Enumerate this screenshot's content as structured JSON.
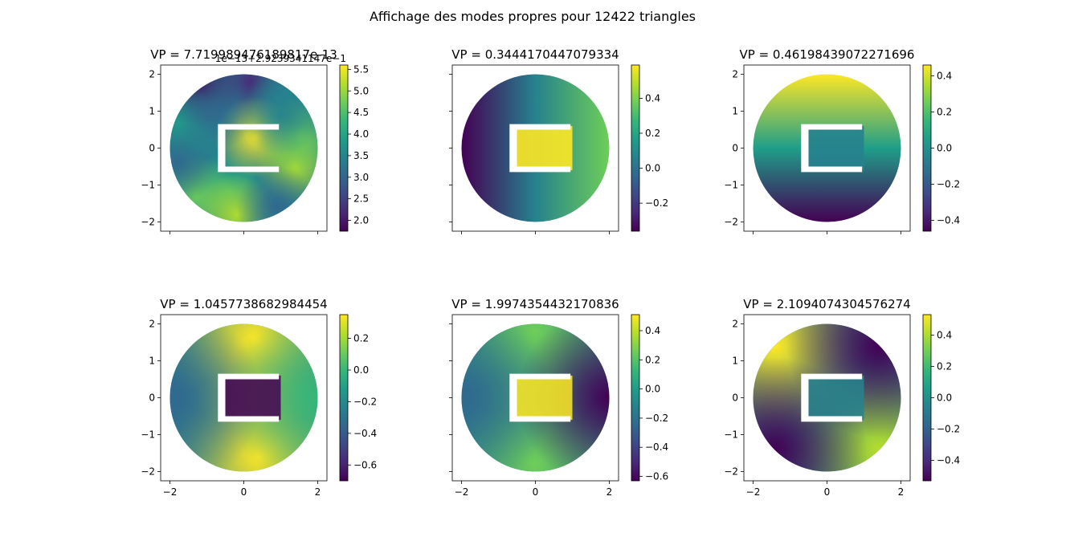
{
  "figure_title": "Affichage des modes propres pour 12422 triangles",
  "colormap": "viridis",
  "colors": {
    "viridis_stops": [
      "#440154",
      "#482878",
      "#3e4989",
      "#31688e",
      "#26828e",
      "#1f9e89",
      "#35b779",
      "#6ece58",
      "#b5de2b",
      "#fde725"
    ],
    "background": "#ffffff",
    "axes_edge": "#000000"
  },
  "chart_data": [
    {
      "type": "heatmap",
      "title": "VP = 7.719989476189817e-13",
      "offset_text": "1e−13+2.9239341147e−1",
      "domain": "disk of radius 2 centered at origin with a C-shaped rectangular hole",
      "xlim": [
        -2.25,
        2.25
      ],
      "ylim": [
        -2.25,
        2.25
      ],
      "xticks": [
        -2,
        0,
        2
      ],
      "yticks": [
        -2,
        -1,
        0,
        1,
        2
      ],
      "xtick_labels": [
        "",
        "",
        ""
      ],
      "ytick_labels": [
        "−2",
        "−1",
        "0",
        "1",
        "2"
      ],
      "colorbar_range": [
        1.75,
        5.6
      ],
      "colorbar_ticks": [
        2.0,
        2.5,
        3.0,
        3.5,
        4.0,
        4.5,
        5.0,
        5.5
      ],
      "colorbar_tick_labels": [
        "2.0",
        "2.5",
        "3.0",
        "3.5",
        "4.0",
        "4.5",
        "5.0",
        "5.5"
      ]
    },
    {
      "type": "heatmap",
      "title": "VP = 0.3444170447079334",
      "domain": "disk of radius 2 centered at origin with a C-shaped rectangular hole",
      "xlim": [
        -2.25,
        2.25
      ],
      "ylim": [
        -2.25,
        2.25
      ],
      "xticks": [
        -2,
        0,
        2
      ],
      "yticks": [
        -2,
        -1,
        0,
        1,
        2
      ],
      "xtick_labels": [
        "",
        "",
        ""
      ],
      "ytick_labels": [
        "",
        "",
        "",
        "",
        ""
      ],
      "colorbar_range": [
        -0.36,
        0.59
      ],
      "colorbar_ticks": [
        -0.2,
        0.0,
        0.2,
        0.4
      ],
      "colorbar_tick_labels": [
        "−0.2",
        "0.0",
        "0.2",
        "0.4"
      ]
    },
    {
      "type": "heatmap",
      "title": "VP = 0.46198439072271696",
      "domain": "disk of radius 2 centered at origin with a C-shaped rectangular hole",
      "xlim": [
        -2.25,
        2.25
      ],
      "ylim": [
        -2.25,
        2.25
      ],
      "xticks": [
        -2,
        0,
        2
      ],
      "yticks": [
        -2,
        -1,
        0,
        1,
        2
      ],
      "xtick_labels": [
        "",
        "",
        ""
      ],
      "ytick_labels": [
        "−2",
        "−1",
        "0",
        "1",
        "2"
      ],
      "colorbar_range": [
        -0.46,
        0.46
      ],
      "colorbar_ticks": [
        -0.4,
        -0.2,
        0.0,
        0.2,
        0.4
      ],
      "colorbar_tick_labels": [
        "−0.4",
        "−0.2",
        "0.0",
        "0.2",
        "0.4"
      ]
    },
    {
      "type": "heatmap",
      "title": "VP = 1.0457738682984454",
      "domain": "disk of radius 2 centered at origin with a C-shaped rectangular hole",
      "xlim": [
        -2.25,
        2.25
      ],
      "ylim": [
        -2.25,
        2.25
      ],
      "xticks": [
        -2,
        0,
        2
      ],
      "yticks": [
        -2,
        -1,
        0,
        1,
        2
      ],
      "xtick_labels": [
        "−2",
        "0",
        "2"
      ],
      "ytick_labels": [
        "−2",
        "−1",
        "0",
        "1",
        "2"
      ],
      "colorbar_range": [
        -0.7,
        0.35
      ],
      "colorbar_ticks": [
        -0.6,
        -0.4,
        -0.2,
        0.0,
        0.2
      ],
      "colorbar_tick_labels": [
        "−0.6",
        "−0.4",
        "−0.2",
        "0.0",
        "0.2"
      ]
    },
    {
      "type": "heatmap",
      "title": "VP = 1.9974354432170836",
      "domain": "disk of radius 2 centered at origin with a C-shaped rectangular hole",
      "xlim": [
        -2.25,
        2.25
      ],
      "ylim": [
        -2.25,
        2.25
      ],
      "xticks": [
        -2,
        0,
        2
      ],
      "yticks": [
        -2,
        -1,
        0,
        1,
        2
      ],
      "xtick_labels": [
        "−2",
        "0",
        "2"
      ],
      "ytick_labels": [
        "",
        "",
        "",
        "",
        ""
      ],
      "colorbar_range": [
        -0.63,
        0.51
      ],
      "colorbar_ticks": [
        -0.6,
        -0.4,
        -0.2,
        0.0,
        0.2,
        0.4
      ],
      "colorbar_tick_labels": [
        "−0.6",
        "−0.4",
        "−0.2",
        "0.0",
        "0.2",
        "0.4"
      ]
    },
    {
      "type": "heatmap",
      "title": "VP = 2.1094074304576274",
      "domain": "disk of radius 2 centered at origin with a C-shaped rectangular hole",
      "xlim": [
        -2.25,
        2.25
      ],
      "ylim": [
        -2.25,
        2.25
      ],
      "xticks": [
        -2,
        0,
        2
      ],
      "yticks": [
        -2,
        -1,
        0,
        1,
        2
      ],
      "xtick_labels": [
        "−2",
        "0",
        "2"
      ],
      "ytick_labels": [
        "−2",
        "−1",
        "0",
        "1",
        "2"
      ],
      "colorbar_range": [
        -0.53,
        0.53
      ],
      "colorbar_ticks": [
        -0.4,
        -0.2,
        0.0,
        0.2,
        0.4
      ],
      "colorbar_tick_labels": [
        "−0.4",
        "−0.2",
        "0.0",
        "0.2",
        "0.4"
      ]
    }
  ]
}
